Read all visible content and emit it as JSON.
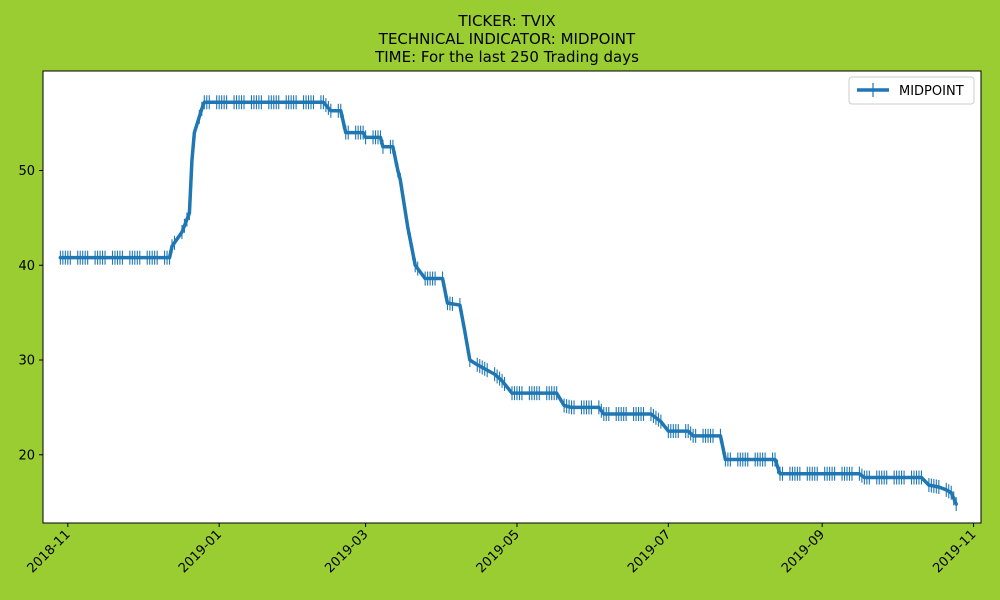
{
  "chart_data": {
    "type": "line",
    "title_lines": [
      "TICKER:  TVIX",
      "TECHNICAL INDICATOR:  MIDPOINT",
      "TIME: For the last 250 Trading days"
    ],
    "xlabel": "",
    "ylabel": "",
    "legend": {
      "placement": "top-right",
      "entries": [
        "MIDPOINT"
      ]
    },
    "grid": false,
    "marker": "|",
    "colors": {
      "figure_bg": "#9acd32",
      "plot_bg": "#ffffff",
      "series": "#1f77b4"
    },
    "x_ticks": [
      "2018-11",
      "2019-01",
      "2019-03",
      "2019-05",
      "2019-07",
      "2019-09",
      "2019-11"
    ],
    "y_ticks": [
      20,
      30,
      40,
      50
    ],
    "xlim": [
      "2018-10-22",
      "2019-11-04"
    ],
    "ylim": [
      12.8,
      60.5
    ],
    "series": [
      {
        "name": "MIDPOINT",
        "color": "#1f77b4",
        "points": [
          [
            "2018-10-29",
            40.8
          ],
          [
            "2018-12-12",
            40.8
          ],
          [
            "2018-12-13",
            42.0
          ],
          [
            "2018-12-17",
            43.5
          ],
          [
            "2018-12-20",
            45.5
          ],
          [
            "2018-12-21",
            51.0
          ],
          [
            "2018-12-22",
            54.0
          ],
          [
            "2018-12-25",
            56.5
          ],
          [
            "2018-12-26",
            57.2
          ],
          [
            "2019-02-12",
            57.2
          ],
          [
            "2019-02-15",
            56.3
          ],
          [
            "2019-02-19",
            56.3
          ],
          [
            "2019-02-21",
            54.0
          ],
          [
            "2019-02-28",
            54.0
          ],
          [
            "2019-03-01",
            53.5
          ],
          [
            "2019-03-07",
            53.5
          ],
          [
            "2019-03-08",
            52.5
          ],
          [
            "2019-03-12",
            52.5
          ],
          [
            "2019-03-14",
            50.0
          ],
          [
            "2019-03-15",
            49.0
          ],
          [
            "2019-03-18",
            44.0
          ],
          [
            "2019-03-21",
            40.0
          ],
          [
            "2019-03-25",
            38.6
          ],
          [
            "2019-04-01",
            38.6
          ],
          [
            "2019-04-03",
            36.0
          ],
          [
            "2019-04-08",
            35.8
          ],
          [
            "2019-04-10",
            33.0
          ],
          [
            "2019-04-12",
            30.0
          ],
          [
            "2019-04-15",
            29.5
          ],
          [
            "2019-04-22",
            28.5
          ],
          [
            "2019-04-25",
            27.8
          ],
          [
            "2019-04-29",
            26.5
          ],
          [
            "2019-05-17",
            26.5
          ],
          [
            "2019-05-20",
            25.2
          ],
          [
            "2019-05-23",
            25.0
          ],
          [
            "2019-06-03",
            25.0
          ],
          [
            "2019-06-05",
            24.3
          ],
          [
            "2019-06-24",
            24.3
          ],
          [
            "2019-06-28",
            23.5
          ],
          [
            "2019-07-01",
            22.5
          ],
          [
            "2019-07-09",
            22.5
          ],
          [
            "2019-07-11",
            22.0
          ],
          [
            "2019-07-22",
            22.0
          ],
          [
            "2019-07-24",
            19.5
          ],
          [
            "2019-08-13",
            19.5
          ],
          [
            "2019-08-15",
            18.0
          ],
          [
            "2019-09-16",
            18.0
          ],
          [
            "2019-09-18",
            17.6
          ],
          [
            "2019-10-11",
            17.6
          ],
          [
            "2019-10-14",
            16.8
          ],
          [
            "2019-10-18",
            16.6
          ],
          [
            "2019-10-21",
            16.3
          ],
          [
            "2019-10-23",
            16.0
          ],
          [
            "2019-10-25",
            14.8
          ]
        ]
      }
    ]
  }
}
